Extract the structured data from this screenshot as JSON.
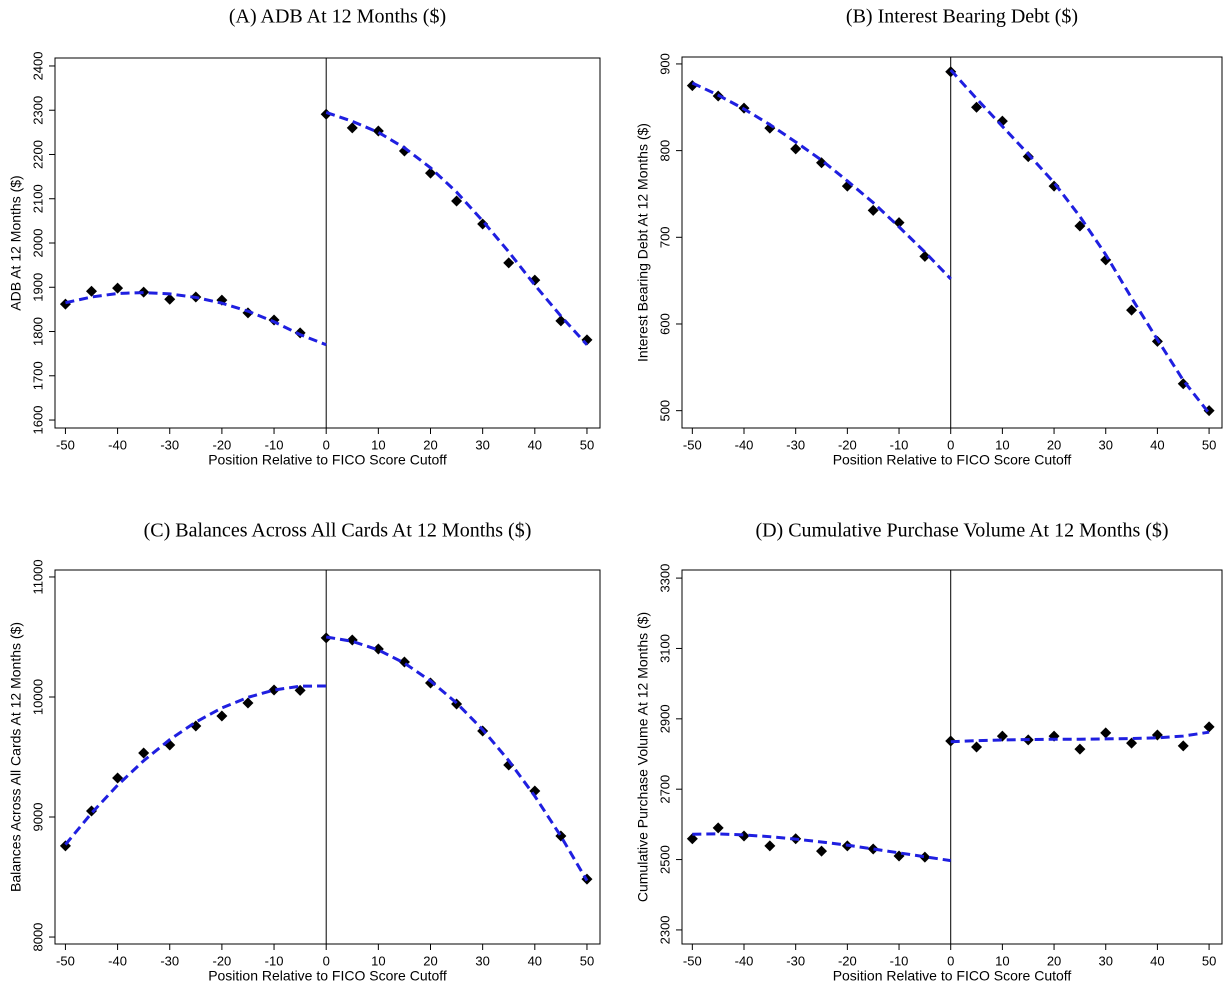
{
  "chart_data": [
    {
      "type": "scatter",
      "title": "(A)  ADB At 12 Months ($)",
      "xlabel": "Position Relative to FICO Score Cutoff",
      "ylabel": "ADB At 12 Months ($)",
      "x": [
        -50,
        -45,
        -40,
        -35,
        -30,
        -25,
        -20,
        -15,
        -10,
        -5,
        0,
        5,
        10,
        15,
        20,
        25,
        30,
        35,
        40,
        45,
        50
      ],
      "series": [
        {
          "color": "#000000",
          "marker": "diamond",
          "values": [
            1862,
            1891,
            1898,
            1889,
            1873,
            1878,
            1871,
            1842,
            1826,
            1797,
            2291,
            2260,
            2253,
            2208,
            2158,
            2095,
            2043,
            1955,
            1916,
            1824,
            1781
          ]
        },
        {
          "color": "#1f1fe0",
          "linestyle": "dashed",
          "values": [
            1865,
            1878,
            1886,
            1888,
            1885,
            1877,
            1864,
            1846,
            1822,
            1793,
            1770,
            null,
            null,
            null,
            null,
            null,
            null,
            null,
            null,
            null,
            null
          ]
        },
        {
          "color": "#1f1fe0",
          "linestyle": "dashed",
          "values": [
            null,
            null,
            null,
            null,
            null,
            null,
            null,
            null,
            null,
            null,
            2295,
            2275,
            2250,
            2215,
            2170,
            2115,
            2050,
            1980,
            1905,
            1835,
            1770
          ]
        }
      ],
      "vline": 0,
      "xlim": [
        -52,
        52.5
      ],
      "xticks": [
        -50,
        -40,
        -30,
        -20,
        -10,
        0,
        10,
        20,
        30,
        40,
        50
      ],
      "ylim": [
        1582,
        2418
      ],
      "yticks": [
        1600,
        1700,
        1800,
        1900,
        2000,
        2100,
        2200,
        2300,
        2400
      ]
    },
    {
      "type": "scatter",
      "title": "(B)  Interest Bearing Debt ($)",
      "xlabel": "Position Relative to FICO Score Cutoff",
      "ylabel": "Interest Bearing Debt At 12 Months ($)",
      "x": [
        -50,
        -45,
        -40,
        -35,
        -30,
        -25,
        -20,
        -15,
        -10,
        -5,
        0,
        5,
        10,
        15,
        20,
        25,
        30,
        35,
        40,
        45,
        50
      ],
      "series": [
        {
          "color": "#000000",
          "marker": "diamond",
          "values": [
            875,
            863,
            849,
            826,
            802,
            786,
            759,
            731,
            717,
            678,
            891,
            850,
            834,
            793,
            759,
            713,
            674,
            616,
            580,
            531,
            500
          ]
        },
        {
          "color": "#1f1fe0",
          "linestyle": "dashed",
          "values": [
            878,
            864,
            848,
            830,
            810,
            789,
            765,
            740,
            712,
            683,
            652,
            null,
            null,
            null,
            null,
            null,
            null,
            null,
            null,
            null,
            null
          ]
        },
        {
          "color": "#1f1fe0",
          "linestyle": "dashed",
          "values": [
            null,
            null,
            null,
            null,
            null,
            null,
            null,
            null,
            null,
            null,
            893,
            860,
            828,
            796,
            763,
            724,
            680,
            630,
            582,
            535,
            497
          ]
        }
      ],
      "vline": 0,
      "xlim": [
        -52,
        52.5
      ],
      "xticks": [
        -50,
        -40,
        -30,
        -20,
        -10,
        0,
        10,
        20,
        30,
        40,
        50
      ],
      "ylim": [
        480,
        908
      ],
      "yticks": [
        500,
        600,
        700,
        800,
        900
      ]
    },
    {
      "type": "scatter",
      "title": "(C)  Balances Across All Cards At 12 Months ($)",
      "xlabel": "Position Relative to FICO Score Cutoff",
      "ylabel": "Balances Across All Cards At 12 Months ($)",
      "x": [
        -50,
        -45,
        -40,
        -35,
        -30,
        -25,
        -20,
        -15,
        -10,
        -5,
        0,
        5,
        10,
        15,
        20,
        25,
        30,
        35,
        40,
        45,
        50
      ],
      "series": [
        {
          "color": "#000000",
          "marker": "diamond",
          "values": [
            8760,
            9050,
            9325,
            9533,
            9600,
            9758,
            9842,
            9950,
            10058,
            10055,
            10492,
            10475,
            10400,
            10292,
            10117,
            9942,
            9717,
            9433,
            9217,
            8842,
            8483
          ]
        },
        {
          "color": "#1f1fe0",
          "linestyle": "dashed",
          "values": [
            8770,
            9032,
            9265,
            9469,
            9645,
            9791,
            9909,
            9997,
            10058,
            10090,
            10092,
            null,
            null,
            null,
            null,
            null,
            null,
            null,
            null,
            null,
            null
          ]
        },
        {
          "color": "#1f1fe0",
          "linestyle": "dashed",
          "values": [
            null,
            null,
            null,
            null,
            null,
            null,
            null,
            null,
            null,
            null,
            10500,
            10464,
            10392,
            10282,
            10134,
            9950,
            9728,
            9470,
            9174,
            8840,
            8470
          ]
        }
      ],
      "vline": 0,
      "xlim": [
        -52,
        52.5
      ],
      "xticks": [
        -50,
        -40,
        -30,
        -20,
        -10,
        0,
        10,
        20,
        30,
        40,
        50
      ],
      "ylim": [
        7942,
        11058
      ],
      "yticks": [
        8000,
        9000,
        10000,
        11000
      ]
    },
    {
      "type": "scatter",
      "title": "(D)  Cumulative Purchase Volume At 12 Months ($)",
      "xlabel": "Position Relative to FICO Score Cutoff",
      "ylabel": "Cumulative Purchase Volume At 12 Months ($)",
      "x": [
        -50,
        -45,
        -40,
        -35,
        -30,
        -25,
        -20,
        -15,
        -10,
        -5,
        0,
        5,
        10,
        15,
        20,
        25,
        30,
        35,
        40,
        45,
        50
      ],
      "series": [
        {
          "color": "#000000",
          "marker": "diamond",
          "values": [
            2559,
            2590,
            2567,
            2539,
            2559,
            2524,
            2539,
            2530,
            2510,
            2507,
            2837,
            2820,
            2851,
            2840,
            2851,
            2814,
            2860,
            2831,
            2854,
            2823,
            2877
          ]
        },
        {
          "color": "#1f1fe0",
          "linestyle": "dashed",
          "values": [
            2572,
            2573,
            2570,
            2565,
            2558,
            2550,
            2541,
            2530,
            2519,
            2508,
            2497,
            null,
            null,
            null,
            null,
            null,
            null,
            null,
            null,
            null,
            null
          ]
        },
        {
          "color": "#1f1fe0",
          "linestyle": "dashed",
          "values": [
            null,
            null,
            null,
            null,
            null,
            null,
            null,
            null,
            null,
            null,
            2835,
            2838,
            2840,
            2841,
            2842,
            2842,
            2843,
            2844,
            2846,
            2851,
            2862
          ]
        }
      ],
      "vline": 0,
      "xlim": [
        -52,
        52.5
      ],
      "xticks": [
        -50,
        -40,
        -30,
        -20,
        -10,
        0,
        10,
        20,
        30,
        40,
        50
      ],
      "ylim": [
        2260,
        3323
      ],
      "yticks": [
        2300,
        2500,
        2700,
        2900,
        3100,
        3300
      ]
    }
  ]
}
